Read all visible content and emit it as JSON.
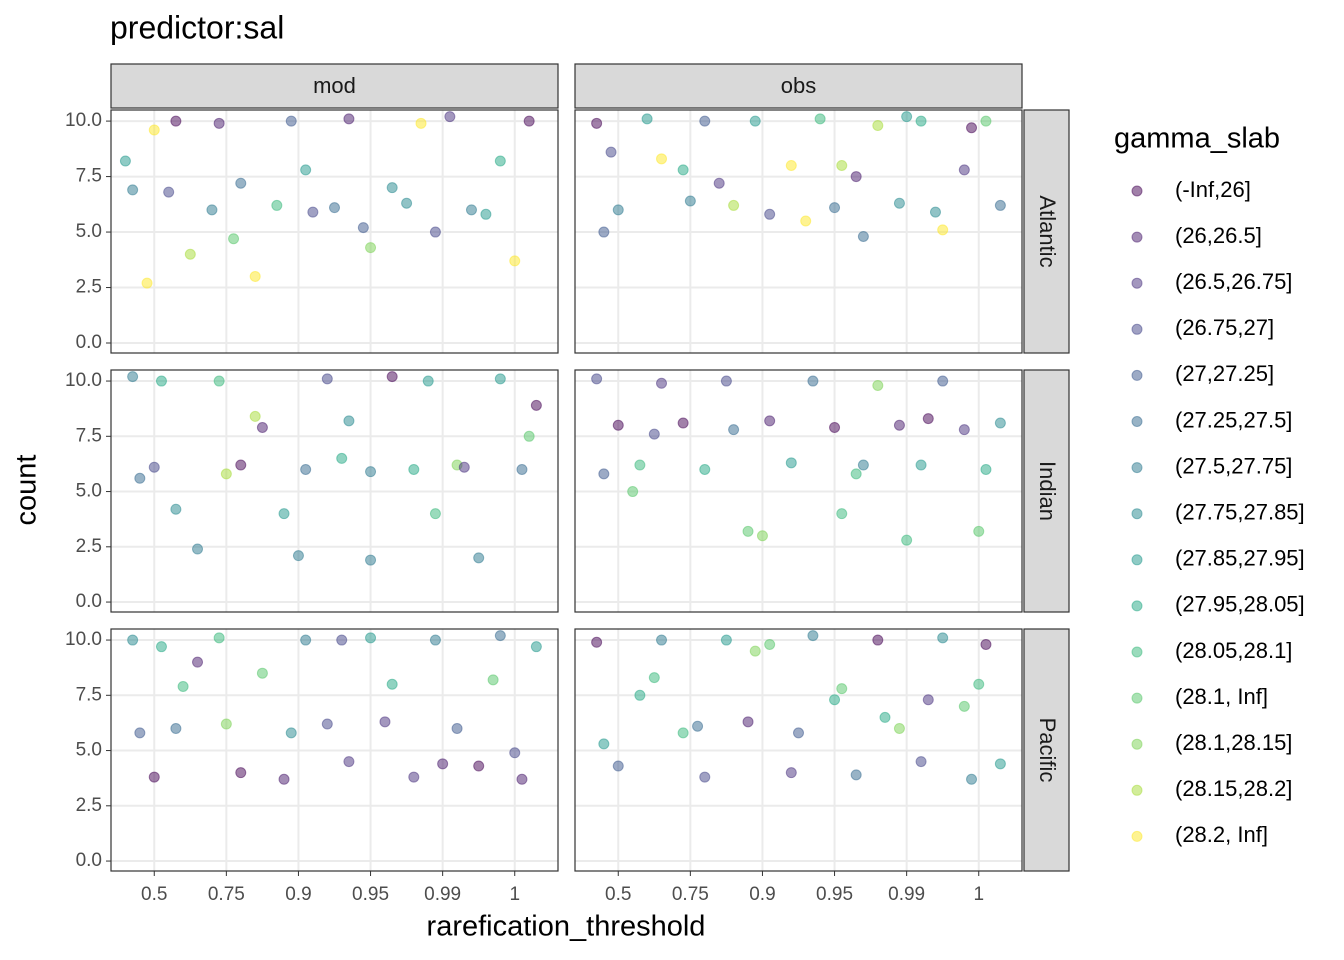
{
  "chart_data": {
    "type": "scatter",
    "title": "predictor:sal",
    "x_label": "rarefication_threshold",
    "y_label": "count",
    "columns": [
      "mod",
      "obs"
    ],
    "rows": [
      "Atlantic",
      "Indian",
      "Pacific"
    ],
    "xlim": [
      0.4,
      6.6
    ],
    "xticks": [
      {
        "value": 1,
        "label": "0.5"
      },
      {
        "value": 2,
        "label": "0.75"
      },
      {
        "value": 3,
        "label": "0.9"
      },
      {
        "value": 4,
        "label": "0.95"
      },
      {
        "value": 5,
        "label": "0.99"
      },
      {
        "value": 6,
        "label": "1"
      }
    ],
    "ylim": [
      -0.45,
      10.5
    ],
    "yticks": [
      {
        "value": 0,
        "label": "0.0"
      },
      {
        "value": 2.5,
        "label": "2.5"
      },
      {
        "value": 5,
        "label": "5.0"
      },
      {
        "value": 7.5,
        "label": "7.5"
      },
      {
        "value": 10,
        "label": "10.0"
      }
    ],
    "grid": true,
    "legend_title": "gamma_slab",
    "legend": [
      "(-Inf,26]",
      "(26,26.5]",
      "(26.5,26.75]",
      "(26.75,27]",
      "(27,27.25]",
      "(27.25,27.5]",
      "(27.5,27.75]",
      "(27.75,27.85]",
      "(27.85,27.95]",
      "(27.95,28.05]",
      "(28.05,28.1]",
      "(28.1, Inf]",
      "(28.1,28.15]",
      "(28.15,28.2]",
      "(28.2, Inf]"
    ],
    "colors": [
      "#440154",
      "#481a6c",
      "#472f7d",
      "#414487",
      "#39568c",
      "#31688e",
      "#2a788e",
      "#23888e",
      "#1f988b",
      "#22a884",
      "#35b779",
      "#54c568",
      "#7ad151",
      "#a5db36",
      "#fde725"
    ],
    "panels": [
      {
        "x": [
          0.6,
          1.0,
          1.3,
          0.9,
          1.9,
          2.1,
          2.4,
          1.8,
          2.9,
          3.2,
          3.1,
          3.7,
          4.0,
          3.5,
          4.3,
          4.7,
          4.9,
          5.4,
          5.8,
          6.2,
          6.0,
          1.5,
          2.7,
          5.1,
          3.9,
          1.2,
          2.2,
          4.5,
          5.6,
          0.7
        ],
        "y": [
          8.2,
          9.6,
          10.0,
          2.7,
          9.9,
          4.7,
          3.0,
          6.0,
          10.0,
          5.9,
          7.8,
          10.1,
          4.3,
          6.1,
          7.0,
          9.9,
          5.0,
          6.0,
          8.2,
          10.0,
          3.7,
          4.0,
          6.2,
          10.2,
          5.2,
          6.8,
          7.2,
          6.3,
          5.8,
          6.9
        ],
        "g": [
          8,
          14,
          0,
          14,
          1,
          11,
          14,
          6,
          4,
          3,
          8,
          1,
          12,
          5,
          7,
          14,
          3,
          6,
          9,
          0,
          14,
          13,
          10,
          2,
          4,
          3,
          5,
          7,
          8,
          6
        ]
      },
      {
        "x": [
          0.7,
          1.0,
          1.4,
          1.9,
          2.2,
          2.6,
          2.9,
          3.1,
          3.4,
          3.8,
          4.0,
          4.3,
          4.6,
          4.9,
          5.2,
          5.5,
          5.8,
          6.1,
          6.3,
          0.8,
          1.6,
          2.4,
          3.6,
          4.1,
          5.0,
          5.9,
          0.9,
          2.0,
          4.4,
          5.4
        ],
        "y": [
          9.9,
          6.0,
          10.1,
          7.8,
          10.0,
          6.2,
          10.0,
          5.8,
          8.0,
          10.1,
          6.1,
          7.5,
          9.8,
          6.3,
          10.0,
          5.1,
          7.8,
          10.0,
          6.2,
          5.0,
          8.3,
          7.2,
          5.5,
          8.0,
          10.2,
          9.7,
          8.6,
          6.4,
          4.8,
          5.9
        ],
        "g": [
          0,
          6,
          8,
          9,
          4,
          13,
          8,
          3,
          14,
          10,
          5,
          1,
          13,
          7,
          9,
          14,
          2,
          11,
          5,
          4,
          14,
          2,
          14,
          13,
          8,
          0,
          3,
          6,
          5,
          7
        ]
      },
      {
        "x": [
          0.7,
          1.0,
          1.3,
          1.6,
          1.9,
          2.2,
          2.5,
          2.8,
          3.1,
          3.4,
          3.7,
          4.0,
          4.3,
          4.6,
          4.9,
          5.2,
          5.5,
          5.8,
          6.1,
          6.3,
          1.1,
          2.0,
          3.0,
          4.0,
          5.3,
          6.2,
          0.8,
          2.4,
          3.6,
          4.8
        ],
        "y": [
          10.2,
          6.1,
          4.2,
          2.4,
          10.0,
          6.2,
          7.9,
          4.0,
          6.0,
          10.1,
          8.2,
          5.9,
          10.2,
          6.0,
          4.0,
          6.2,
          2.0,
          10.1,
          6.0,
          8.9,
          10.0,
          5.8,
          2.1,
          1.9,
          6.1,
          7.5,
          5.6,
          8.4,
          6.5,
          10.0
        ],
        "g": [
          6,
          3,
          7,
          6,
          10,
          0,
          1,
          8,
          5,
          3,
          7,
          6,
          0,
          9,
          10,
          12,
          6,
          8,
          5,
          0,
          9,
          13,
          6,
          6,
          2,
          11,
          5,
          13,
          9,
          8
        ]
      },
      {
        "x": [
          0.7,
          1.0,
          1.3,
          1.6,
          1.9,
          2.2,
          2.5,
          2.8,
          3.1,
          3.4,
          3.7,
          4.0,
          4.3,
          4.6,
          4.9,
          5.2,
          5.5,
          5.8,
          6.1,
          6.3,
          0.8,
          1.5,
          2.6,
          3.0,
          4.1,
          4.4,
          5.0,
          5.3,
          6.0,
          1.2
        ],
        "y": [
          10.1,
          8.0,
          6.2,
          9.9,
          8.1,
          6.0,
          10.0,
          3.2,
          8.2,
          6.3,
          10.0,
          7.9,
          5.8,
          9.8,
          8.0,
          6.2,
          10.0,
          7.8,
          6.0,
          8.1,
          5.8,
          7.6,
          7.8,
          3.0,
          4.0,
          6.2,
          2.8,
          8.3,
          3.2,
          5.0
        ],
        "g": [
          3,
          0,
          10,
          2,
          0,
          9,
          3,
          11,
          1,
          8,
          5,
          0,
          10,
          12,
          1,
          8,
          4,
          2,
          9,
          7,
          4,
          3,
          5,
          12,
          10,
          6,
          10,
          0,
          11,
          11
        ]
      },
      {
        "x": [
          0.7,
          1.0,
          1.3,
          1.6,
          1.9,
          2.2,
          2.5,
          2.8,
          3.1,
          3.4,
          3.7,
          4.0,
          4.3,
          4.6,
          4.9,
          5.2,
          5.5,
          5.8,
          6.1,
          6.3,
          0.8,
          1.4,
          2.0,
          2.9,
          3.6,
          4.2,
          5.0,
          5.7,
          6.0,
          1.1
        ],
        "y": [
          10.0,
          3.8,
          6.0,
          9.0,
          10.1,
          4.0,
          8.5,
          3.7,
          10.0,
          6.2,
          4.5,
          10.1,
          8.0,
          3.8,
          10.0,
          6.0,
          4.3,
          10.2,
          3.7,
          9.7,
          5.8,
          7.9,
          6.2,
          5.8,
          10.0,
          6.3,
          4.4,
          8.2,
          4.9,
          9.7
        ],
        "g": [
          7,
          0,
          5,
          1,
          10,
          0,
          11,
          1,
          6,
          3,
          2,
          8,
          9,
          2,
          6,
          4,
          0,
          5,
          1,
          8,
          4,
          10,
          12,
          7,
          3,
          2,
          1,
          11,
          3,
          9
        ]
      },
      {
        "x": [
          0.7,
          1.0,
          1.3,
          1.6,
          1.9,
          2.2,
          2.5,
          2.8,
          3.1,
          3.4,
          3.7,
          4.0,
          4.3,
          4.6,
          4.9,
          5.2,
          5.5,
          5.8,
          6.1,
          6.3,
          0.8,
          1.5,
          2.1,
          2.9,
          3.5,
          4.1,
          4.7,
          5.3,
          5.9,
          6.0
        ],
        "y": [
          9.9,
          4.3,
          7.5,
          10.0,
          5.8,
          3.8,
          10.0,
          6.3,
          9.8,
          4.0,
          10.2,
          7.3,
          3.9,
          10.0,
          6.0,
          4.5,
          10.1,
          7.0,
          9.8,
          4.4,
          5.3,
          8.3,
          6.1,
          9.5,
          5.8,
          7.8,
          6.5,
          7.3,
          3.7,
          8.0
        ],
        "g": [
          0,
          4,
          9,
          6,
          10,
          3,
          8,
          1,
          11,
          2,
          6,
          9,
          5,
          0,
          12,
          3,
          7,
          11,
          0,
          8,
          8,
          10,
          5,
          12,
          4,
          11,
          9,
          2,
          6,
          10
        ]
      }
    ]
  }
}
